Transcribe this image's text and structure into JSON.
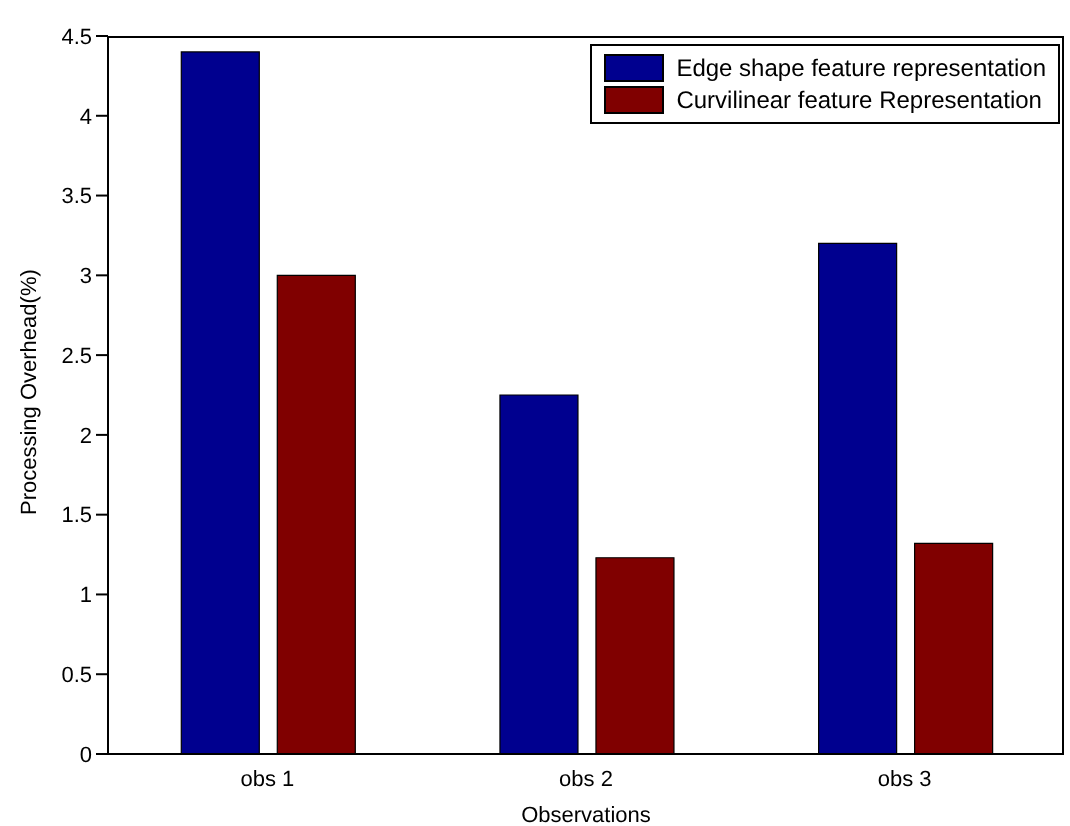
{
  "chart_data": {
    "type": "bar",
    "xlabel": "Observations",
    "ylabel": "Processing Overhead(%)",
    "categories": [
      "obs 1",
      "obs 2",
      "obs 3"
    ],
    "series": [
      {
        "name": "Edge shape feature representation",
        "color": "#00008f",
        "values": [
          4.4,
          2.25,
          3.2
        ]
      },
      {
        "name": "Curvilinear feature Representation",
        "color": "#800000",
        "values": [
          3.0,
          1.23,
          1.32
        ]
      }
    ],
    "ylim": [
      0,
      4.5
    ],
    "yticks": [
      0,
      0.5,
      1,
      1.5,
      2,
      2.5,
      3,
      3.5,
      4,
      4.5
    ],
    "legend": "top right"
  }
}
